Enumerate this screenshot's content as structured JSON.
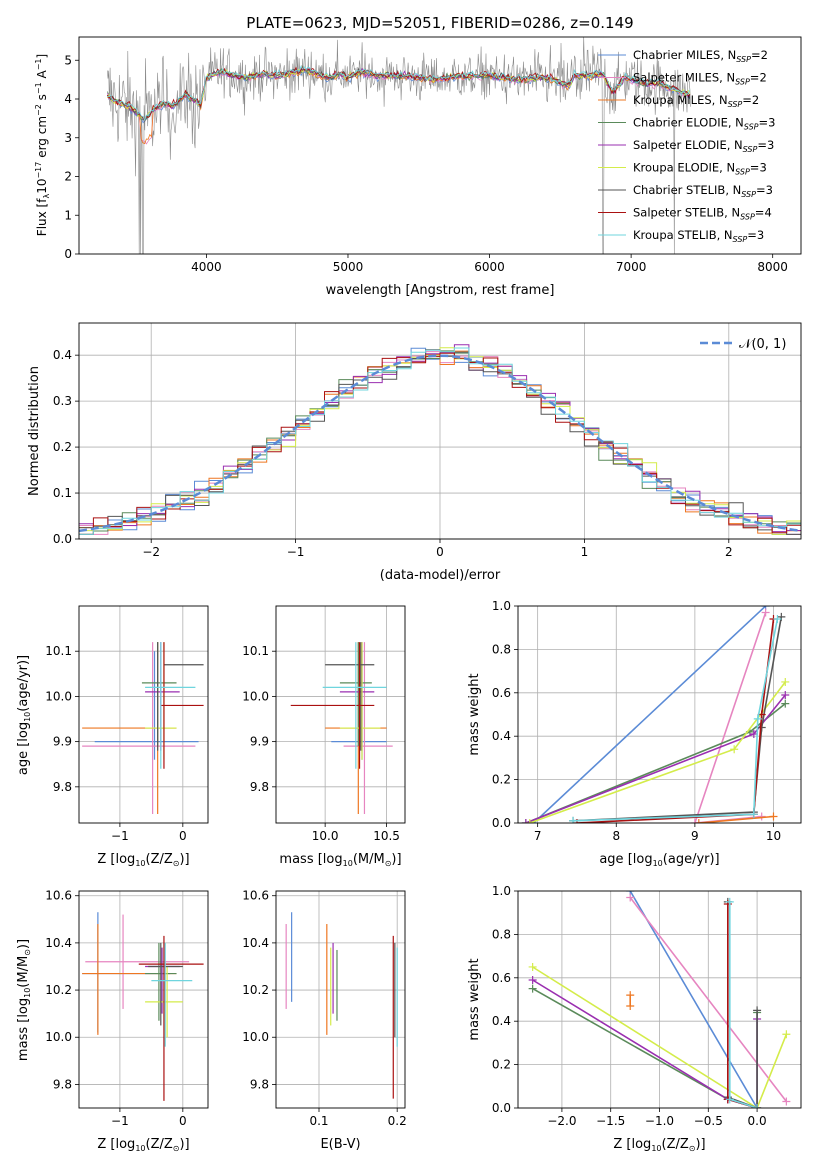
{
  "figure_title": "PLATE=0623, MJD=52051, FIBERID=0286, z=0.149",
  "colors": {
    "Chabrier MILES": "#5b8bd6",
    "Salpeter MILES": "#e685c0",
    "Kroupa MILES": "#ee7722",
    "Chabrier ELODIE": "#5a8a5a",
    "Salpeter ELODIE": "#9a2fb0",
    "Kroupa ELODIE": "#d4ec4a",
    "Chabrier STELIB": "#555555",
    "Salpeter STELIB": "#aa1111",
    "Kroupa STELIB": "#6fd5de",
    "data": "#8a8a8a",
    "normal": "#5b8bd6"
  },
  "chart_data": [
    {
      "id": "spectrum",
      "type": "line",
      "title": "PLATE=0623, MJD=52051, FIBERID=0286, z=0.149",
      "xlabel": "wavelength [Angstrom, rest frame]",
      "ylabel_parts": [
        "Flux [f",
        "λ",
        "10",
        "−17",
        " erg cm",
        "−2",
        " s",
        "−1",
        " A",
        "−1",
        "]"
      ],
      "xlim": [
        3100,
        8200
      ],
      "ylim": [
        0,
        5.6
      ],
      "xticks": [
        4000,
        5000,
        6000,
        7000,
        8000
      ],
      "yticks": [
        0,
        1,
        2,
        3,
        4,
        5
      ],
      "grid": false,
      "legend_position": "right",
      "continuum": {
        "x": [
          3300,
          3350,
          3450,
          3520,
          3560,
          3620,
          3700,
          3760,
          3850,
          3900,
          3960,
          4000,
          4100,
          4200,
          4300,
          4400,
          4500,
          4700,
          4860,
          4950,
          5000,
          5100,
          5200,
          5400,
          5600,
          5800,
          6000,
          6200,
          6400,
          6560,
          6600,
          6700,
          6800,
          6870,
          6950,
          7000,
          7100,
          7200,
          7300,
          7420
        ],
        "y": [
          4.1,
          3.95,
          3.8,
          3.6,
          3.45,
          3.7,
          3.9,
          3.8,
          4.1,
          4.0,
          3.85,
          4.55,
          4.7,
          4.6,
          4.55,
          4.65,
          4.6,
          4.75,
          4.55,
          4.65,
          4.55,
          4.7,
          4.6,
          4.6,
          4.5,
          4.6,
          4.6,
          4.5,
          4.55,
          4.35,
          4.6,
          4.6,
          4.65,
          4.15,
          4.55,
          4.5,
          4.4,
          4.4,
          4.25,
          4.1
        ]
      },
      "series": [
        {
          "name": "Chabrier MILES",
          "nssp": "2"
        },
        {
          "name": "Salpeter MILES",
          "nssp": "2"
        },
        {
          "name": "Kroupa MILES",
          "nssp": "2"
        },
        {
          "name": "Chabrier ELODIE",
          "nssp": "3"
        },
        {
          "name": "Salpeter ELODIE",
          "nssp": "3"
        },
        {
          "name": "Kroupa ELODIE",
          "nssp": "3"
        },
        {
          "name": "Chabrier STELIB",
          "nssp": "3"
        },
        {
          "name": "Salpeter STELIB",
          "nssp": "4"
        },
        {
          "name": "Kroupa STELIB",
          "nssp": "3"
        }
      ]
    },
    {
      "id": "residuals",
      "type": "line",
      "xlabel": "(data-model)/error",
      "ylabel": "Normed distribution",
      "xlim": [
        -2.5,
        2.5
      ],
      "ylim": [
        0,
        0.47
      ],
      "xticks": [
        -2,
        -1,
        0,
        1,
        2
      ],
      "yticks": [
        0.0,
        0.1,
        0.2,
        0.3,
        0.4
      ],
      "grid": true,
      "legend_label": "𝒩(0, 1)",
      "bin_width": 0.1
    },
    {
      "id": "age_vs_Z",
      "type": "scatter",
      "xlabel_parts": [
        "Z [log",
        "10",
        "(Z/Z",
        "⊙",
        ")]"
      ],
      "ylabel_parts": [
        "age  [log",
        "10",
        "(age/yr)]"
      ],
      "xlim": [
        -1.65,
        0.4
      ],
      "ylim": [
        9.72,
        10.2
      ],
      "xticks": [
        -1,
        0
      ],
      "yticks": [
        9.8,
        9.9,
        10.0,
        10.1
      ],
      "grid": true,
      "points": [
        {
          "s": "Chabrier MILES",
          "x": -0.45,
          "y": 9.9,
          "xe": [
            -1.4,
            0.25
          ],
          "ye": [
            9.86,
            10.1
          ]
        },
        {
          "s": "Salpeter MILES",
          "x": -0.48,
          "y": 9.89,
          "xe": [
            -1.6,
            0.2
          ],
          "ye": [
            9.74,
            10.12
          ]
        },
        {
          "s": "Kroupa MILES",
          "x": -0.4,
          "y": 9.93,
          "xe": [
            -1.6,
            -0.1
          ],
          "ye": [
            9.74,
            10.12
          ]
        },
        {
          "s": "Chabrier ELODIE",
          "x": -0.4,
          "y": 10.03,
          "xe": [
            -0.65,
            -0.1
          ],
          "ye": [
            9.89,
            10.12
          ]
        },
        {
          "s": "Salpeter ELODIE",
          "x": -0.35,
          "y": 10.01,
          "xe": [
            -0.6,
            -0.05
          ],
          "ye": [
            9.88,
            10.12
          ]
        },
        {
          "s": "Kroupa ELODIE",
          "x": -0.3,
          "y": 9.93,
          "xe": [
            -0.6,
            -0.1
          ],
          "ye": [
            9.86,
            10.12
          ]
        },
        {
          "s": "Chabrier STELIB",
          "x": -0.4,
          "y": 10.07,
          "xe": [
            -0.3,
            0.33
          ],
          "ye": [
            9.88,
            10.12
          ]
        },
        {
          "s": "Salpeter STELIB",
          "x": -0.3,
          "y": 9.98,
          "xe": [
            -0.35,
            0.33
          ],
          "ye": [
            9.84,
            10.12
          ]
        },
        {
          "s": "Kroupa STELIB",
          "x": -0.35,
          "y": 10.02,
          "xe": [
            -0.6,
            0.2
          ],
          "ye": [
            9.84,
            10.12
          ]
        }
      ]
    },
    {
      "id": "age_vs_mass",
      "type": "scatter",
      "xlabel_parts": [
        "mass [log",
        "10",
        "(M/M",
        "⊙",
        ")]"
      ],
      "ylabel": "",
      "xlim": [
        9.6,
        10.65
      ],
      "ylim": [
        9.72,
        10.2
      ],
      "xticks": [
        10.0,
        10.5
      ],
      "yticks": [
        9.8,
        9.9,
        10.0,
        10.1
      ],
      "grid": true,
      "points": [
        {
          "s": "Chabrier MILES",
          "x": 10.3,
          "y": 9.9,
          "xe": [
            10.05,
            10.5
          ],
          "ye": [
            9.86,
            10.1
          ]
        },
        {
          "s": "Salpeter MILES",
          "x": 10.32,
          "y": 9.89,
          "xe": [
            10.15,
            10.55
          ],
          "ye": [
            9.74,
            10.12
          ]
        },
        {
          "s": "Kroupa MILES",
          "x": 10.27,
          "y": 9.93,
          "xe": [
            10.0,
            10.5
          ],
          "ye": [
            9.74,
            10.12
          ]
        },
        {
          "s": "Chabrier ELODIE",
          "x": 10.27,
          "y": 10.03,
          "xe": [
            10.12,
            10.38
          ],
          "ye": [
            9.89,
            10.12
          ]
        },
        {
          "s": "Salpeter ELODIE",
          "x": 10.3,
          "y": 10.01,
          "xe": [
            10.12,
            10.4
          ],
          "ye": [
            9.88,
            10.12
          ]
        },
        {
          "s": "Kroupa ELODIE",
          "x": 10.3,
          "y": 9.93,
          "xe": [
            10.12,
            10.45
          ],
          "ye": [
            9.86,
            10.12
          ]
        },
        {
          "s": "Chabrier STELIB",
          "x": 10.29,
          "y": 10.07,
          "xe": [
            10.0,
            10.4
          ],
          "ye": [
            9.88,
            10.12
          ]
        },
        {
          "s": "Salpeter STELIB",
          "x": 10.28,
          "y": 9.98,
          "xe": [
            9.72,
            10.4
          ],
          "ye": [
            9.84,
            10.12
          ]
        },
        {
          "s": "Kroupa STELIB",
          "x": 10.25,
          "y": 10.02,
          "xe": [
            9.98,
            10.5
          ],
          "ye": [
            9.84,
            10.12
          ]
        }
      ]
    },
    {
      "id": "weight_vs_age",
      "type": "line",
      "xlabel_parts": [
        "age  [log",
        "10",
        "(age/yr)]"
      ],
      "ylabel": "mass weight",
      "xlim": [
        6.75,
        10.35
      ],
      "ylim": [
        0,
        1.0
      ],
      "xticks": [
        7,
        8,
        9,
        10
      ],
      "yticks": [
        0.0,
        0.2,
        0.4,
        0.6,
        0.8,
        1.0
      ],
      "grid": true,
      "series": [
        {
          "name": "Chabrier MILES",
          "x": [
            6.95,
            9.9
          ],
          "y": [
            0.0,
            1.0
          ]
        },
        {
          "name": "Salpeter MILES",
          "x": [
            9.9,
            9.0,
            9.85
          ],
          "y": [
            0.97,
            0.0,
            0.03
          ]
        },
        {
          "name": "Kroupa MILES",
          "x": [
            9.05,
            10.0
          ],
          "y": [
            0.0,
            0.03
          ]
        },
        {
          "name": "Chabrier ELODIE",
          "x": [
            6.85,
            9.7,
            10.15
          ],
          "y": [
            0.0,
            0.42,
            0.55
          ]
        },
        {
          "name": "Salpeter ELODIE",
          "x": [
            6.85,
            9.75,
            10.15
          ],
          "y": [
            0.0,
            0.41,
            0.59
          ]
        },
        {
          "name": "Kroupa ELODIE",
          "x": [
            6.9,
            9.5,
            10.15
          ],
          "y": [
            0.0,
            0.34,
            0.65
          ]
        },
        {
          "name": "Chabrier STELIB",
          "x": [
            7.45,
            9.75,
            9.85,
            10.1
          ],
          "y": [
            0.01,
            0.05,
            0.44,
            0.95
          ]
        },
        {
          "name": "Salpeter STELIB",
          "x": [
            7.5,
            9.75,
            9.85,
            10.0
          ],
          "y": [
            0.0,
            0.04,
            0.5,
            0.94
          ]
        },
        {
          "name": "Kroupa STELIB",
          "x": [
            7.45,
            9.75,
            9.8,
            10.05
          ],
          "y": [
            0.01,
            0.04,
            0.48,
            0.94
          ]
        }
      ]
    },
    {
      "id": "mass_vs_Z",
      "type": "scatter",
      "xlabel_parts": [
        "Z [log",
        "10",
        "(Z/Z",
        "⊙",
        ")]"
      ],
      "ylabel_parts": [
        "mass [log",
        "10",
        "(M/M",
        "⊙",
        ")]"
      ],
      "xlim": [
        -1.65,
        0.4
      ],
      "ylim": [
        9.7,
        10.62
      ],
      "xticks": [
        -1,
        0
      ],
      "yticks": [
        9.8,
        10.0,
        10.2,
        10.4,
        10.6
      ],
      "grid": true,
      "points": [
        {
          "s": "Chabrier MILES",
          "x": -1.35,
          "y": 10.27,
          "xe": [
            -1.6,
            -0.2
          ],
          "ye": [
            10.02,
            10.53
          ]
        },
        {
          "s": "Salpeter MILES",
          "x": -0.95,
          "y": 10.32,
          "xe": [
            -1.55,
            0.1
          ],
          "ye": [
            10.12,
            10.52
          ]
        },
        {
          "s": "Kroupa MILES",
          "x": -1.35,
          "y": 10.27,
          "xe": [
            -1.6,
            -0.1
          ],
          "ye": [
            10.01,
            10.48
          ]
        },
        {
          "s": "Chabrier ELODIE",
          "x": -0.38,
          "y": 10.27,
          "xe": [
            -0.6,
            -0.1
          ],
          "ye": [
            10.07,
            10.4
          ]
        },
        {
          "s": "Salpeter ELODIE",
          "x": -0.33,
          "y": 10.3,
          "xe": [
            -0.6,
            -0.05
          ],
          "ye": [
            10.1,
            10.38
          ]
        },
        {
          "s": "Kroupa ELODIE",
          "x": -0.25,
          "y": 10.15,
          "xe": [
            -0.6,
            0.0
          ],
          "ye": [
            10.0,
            10.3
          ]
        },
        {
          "s": "Chabrier STELIB",
          "x": -0.35,
          "y": 10.3,
          "xe": [
            -0.55,
            0.0
          ],
          "ye": [
            10.05,
            10.4
          ]
        },
        {
          "s": "Salpeter STELIB",
          "x": -0.3,
          "y": 10.31,
          "xe": [
            -0.7,
            0.33
          ],
          "ye": [
            9.73,
            10.43
          ]
        },
        {
          "s": "Kroupa STELIB",
          "x": -0.28,
          "y": 10.24,
          "xe": [
            -0.5,
            0.15
          ],
          "ye": [
            9.96,
            10.4
          ]
        }
      ]
    },
    {
      "id": "mass_vs_ebv",
      "type": "scatter",
      "xlabel": "E(B-V)",
      "ylabel": "",
      "xlim": [
        0.045,
        0.21
      ],
      "ylim": [
        9.7,
        10.62
      ],
      "xticks": [
        0.1,
        0.2
      ],
      "yticks": [
        9.8,
        10.0,
        10.2,
        10.4,
        10.6
      ],
      "grid": true,
      "points": [
        {
          "s": "Chabrier MILES",
          "x": 0.065,
          "y": 10.33,
          "ye": [
            10.15,
            10.53
          ]
        },
        {
          "s": "Salpeter MILES",
          "x": 0.058,
          "y": 10.3,
          "ye": [
            10.12,
            10.48
          ]
        },
        {
          "s": "Kroupa MILES",
          "x": 0.11,
          "y": 10.25,
          "ye": [
            10.01,
            10.48
          ]
        },
        {
          "s": "Chabrier ELODIE",
          "x": 0.123,
          "y": 10.2,
          "ye": [
            10.07,
            10.37
          ]
        },
        {
          "s": "Salpeter ELODIE",
          "x": 0.118,
          "y": 10.25,
          "ye": [
            10.1,
            10.4
          ]
        },
        {
          "s": "Kroupa ELODIE",
          "x": 0.115,
          "y": 10.2,
          "ye": [
            10.05,
            10.38
          ]
        },
        {
          "s": "Chabrier STELIB",
          "x": 0.197,
          "y": 10.2,
          "ye": [
            10.0,
            10.4
          ]
        },
        {
          "s": "Salpeter STELIB",
          "x": 0.195,
          "y": 10.1,
          "ye": [
            9.74,
            10.43
          ]
        },
        {
          "s": "Kroupa STELIB",
          "x": 0.2,
          "y": 10.2,
          "ye": [
            9.96,
            10.38
          ]
        }
      ]
    },
    {
      "id": "weight_vs_Z",
      "type": "line",
      "xlabel_parts": [
        "Z [log",
        "10",
        "(Z/Z",
        "⊙",
        ")]"
      ],
      "ylabel": "mass weight",
      "xlim": [
        -2.45,
        0.45
      ],
      "ylim": [
        0,
        1.0
      ],
      "xticks": [
        -2.0,
        -1.5,
        -1.0,
        -0.5,
        0.0
      ],
      "yticks": [
        0.0,
        0.2,
        0.4,
        0.6,
        0.8,
        1.0
      ],
      "grid": true,
      "series": [
        {
          "name": "Chabrier MILES",
          "x": [
            -1.3,
            0.0
          ],
          "y": [
            1.0,
            0.0
          ]
        },
        {
          "name": "Salpeter MILES",
          "x": [
            -1.3,
            0.3
          ],
          "y": [
            0.97,
            0.03
          ]
        },
        {
          "name": "Kroupa MILES",
          "x": [
            -1.3,
            -1.3
          ],
          "y": [
            0.47,
            0.52
          ]
        },
        {
          "name": "Chabrier ELODIE",
          "x": [
            -2.3,
            -0.3,
            0.0,
            0.0
          ],
          "y": [
            0.55,
            0.04,
            0.0,
            0.44
          ]
        },
        {
          "name": "Salpeter ELODIE",
          "x": [
            -2.3,
            -0.3,
            0.0,
            0.0
          ],
          "y": [
            0.59,
            0.04,
            0.0,
            0.41
          ]
        },
        {
          "name": "Kroupa ELODIE",
          "x": [
            -2.3,
            0.0,
            0.3
          ],
          "y": [
            0.65,
            0.0,
            0.34
          ]
        },
        {
          "name": "Chabrier STELIB",
          "x": [
            -0.3,
            -0.3,
            0.0,
            0.0
          ],
          "y": [
            0.95,
            0.05,
            0.0,
            0.45
          ]
        },
        {
          "name": "Salpeter STELIB",
          "x": [
            -0.3,
            -0.3,
            0.0
          ],
          "y": [
            0.94,
            0.04,
            0.0
          ]
        },
        {
          "name": "Kroupa STELIB",
          "x": [
            -0.28,
            -0.28,
            0.0
          ],
          "y": [
            0.95,
            0.04,
            0.0
          ]
        }
      ]
    }
  ]
}
